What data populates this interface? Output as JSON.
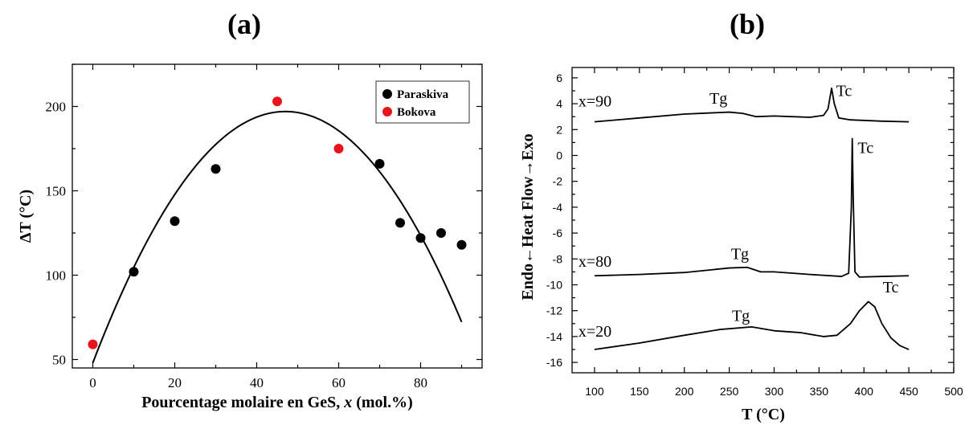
{
  "panels": {
    "a_label": "(a)",
    "b_label": "(b)"
  },
  "chart_data": [
    {
      "id": "a",
      "type": "scatter",
      "xlabel_prefix": "Pourcentage molaire en GeS, ",
      "xlabel_var": "x",
      "xlabel_suffix": " (mol.%)",
      "ylabel": "ΔT (°C)",
      "xlim": [
        -5,
        95
      ],
      "ylim": [
        45,
        225
      ],
      "xticks": [
        0,
        20,
        40,
        60,
        80
      ],
      "yticks": [
        50,
        100,
        150,
        200
      ],
      "grid": false,
      "legend_position": "top-right",
      "series": [
        {
          "name": "Paraskiva",
          "color": "#000000",
          "points": [
            [
              10,
              102
            ],
            [
              20,
              132
            ],
            [
              30,
              163
            ],
            [
              70,
              166
            ],
            [
              75,
              131
            ],
            [
              80,
              122
            ],
            [
              85,
              125
            ],
            [
              90,
              118
            ]
          ]
        },
        {
          "name": "Bokova",
          "color": "#e8141c",
          "points": [
            [
              0,
              59
            ],
            [
              45,
              203
            ],
            [
              60,
              175
            ]
          ]
        }
      ],
      "fit": {
        "type": "quadratic",
        "color": "#000000",
        "x_range": [
          0,
          90
        ],
        "vertex": [
          47,
          197
        ],
        "y_at_start": 48
      }
    },
    {
      "id": "b",
      "type": "line",
      "xlabel": "T (°C)",
      "ylabel": "Endo←Heat Flow→Exo",
      "xlim": [
        75,
        500
      ],
      "ylim": [
        -16.8,
        6.8
      ],
      "xticks": [
        100,
        150,
        200,
        250,
        300,
        350,
        400,
        450,
        500
      ],
      "yticks": [
        6,
        4,
        2,
        0,
        -2,
        -4,
        -6,
        -8,
        -10,
        -12,
        -14,
        -16
      ],
      "grid": false,
      "series": [
        {
          "name": "x=90",
          "color": "#000000",
          "points": [
            [
              100,
              2.6
            ],
            [
              150,
              2.9
            ],
            [
              200,
              3.2
            ],
            [
              250,
              3.35
            ],
            [
              265,
              3.25
            ],
            [
              280,
              3.0
            ],
            [
              300,
              3.05
            ],
            [
              320,
              3.0
            ],
            [
              340,
              2.95
            ],
            [
              355,
              3.1
            ],
            [
              360,
              3.6
            ],
            [
              364,
              5.2
            ],
            [
              367,
              4.0
            ],
            [
              372,
              2.9
            ],
            [
              385,
              2.75
            ],
            [
              420,
              2.65
            ],
            [
              450,
              2.6
            ]
          ]
        },
        {
          "name": "x=80",
          "color": "#000000",
          "points": [
            [
              100,
              -9.3
            ],
            [
              150,
              -9.2
            ],
            [
              200,
              -9.05
            ],
            [
              250,
              -8.7
            ],
            [
              270,
              -8.65
            ],
            [
              285,
              -9.0
            ],
            [
              300,
              -9.0
            ],
            [
              340,
              -9.2
            ],
            [
              375,
              -9.35
            ],
            [
              383,
              -9.1
            ],
            [
              386,
              -4.0
            ],
            [
              387,
              1.3
            ],
            [
              388,
              -3.0
            ],
            [
              390,
              -9.0
            ],
            [
              395,
              -9.4
            ],
            [
              420,
              -9.35
            ],
            [
              450,
              -9.3
            ]
          ]
        },
        {
          "name": "x=20",
          "color": "#000000",
          "points": [
            [
              100,
              -15.0
            ],
            [
              150,
              -14.5
            ],
            [
              200,
              -13.9
            ],
            [
              240,
              -13.45
            ],
            [
              275,
              -13.25
            ],
            [
              300,
              -13.55
            ],
            [
              330,
              -13.7
            ],
            [
              355,
              -14.0
            ],
            [
              370,
              -13.9
            ],
            [
              385,
              -13.0
            ],
            [
              395,
              -12.0
            ],
            [
              405,
              -11.3
            ],
            [
              412,
              -11.7
            ],
            [
              420,
              -13.0
            ],
            [
              430,
              -14.1
            ],
            [
              440,
              -14.7
            ],
            [
              450,
              -15.0
            ]
          ]
        }
      ],
      "annotations": [
        {
          "text": "x=90",
          "x": 82,
          "y": 3.8
        },
        {
          "text": "Tg",
          "x": 228,
          "y": 4.0
        },
        {
          "text": "Tc",
          "x": 369,
          "y": 4.6
        },
        {
          "text": "Tc",
          "x": 393,
          "y": 0.2
        },
        {
          "text": "x=80",
          "x": 82,
          "y": -8.6
        },
        {
          "text": "Tg",
          "x": 252,
          "y": -8.0
        },
        {
          "text": "x=20",
          "x": 82,
          "y": -14.0
        },
        {
          "text": "Tg",
          "x": 253,
          "y": -12.8
        },
        {
          "text": "Tc",
          "x": 421,
          "y": -10.6
        }
      ]
    }
  ]
}
